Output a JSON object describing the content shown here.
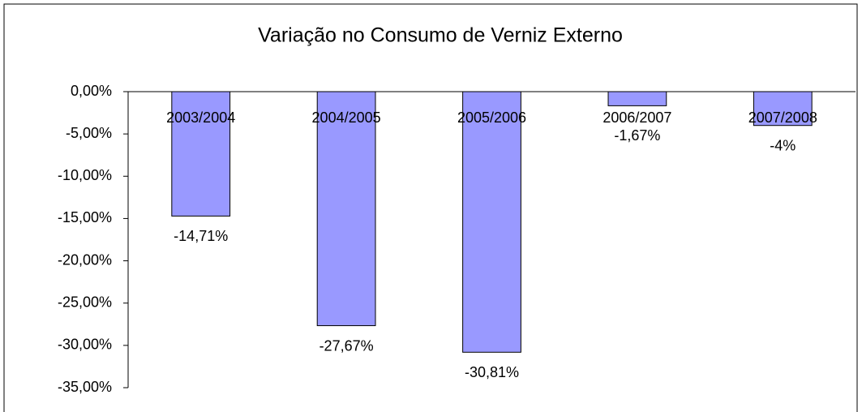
{
  "chart_data": {
    "type": "bar",
    "title": "Variação no Consumo de Verniz Externo",
    "categories": [
      "2003/2004",
      "2004/2005",
      "2005/2006",
      "2006/2007",
      "2007/2008"
    ],
    "values": [
      -14.71,
      -27.67,
      -30.81,
      -1.67,
      -4
    ],
    "value_labels": [
      "-14,71%",
      "-27,67%",
      "-30,81%",
      "-1,67%",
      "-4%"
    ],
    "color": "#9999ff",
    "ylim": [
      -35,
      0
    ],
    "yticks": [
      {
        "value": 0,
        "label": "0,00%"
      },
      {
        "value": -5,
        "label": "-5,00%"
      },
      {
        "value": -10,
        "label": "-10,00%"
      },
      {
        "value": -15,
        "label": "-15,00%"
      },
      {
        "value": -20,
        "label": "-20,00%"
      },
      {
        "value": -25,
        "label": "-25,00%"
      },
      {
        "value": -30,
        "label": "-30,00%"
      },
      {
        "value": -35,
        "label": "-35,00%"
      }
    ],
    "grid": false
  }
}
